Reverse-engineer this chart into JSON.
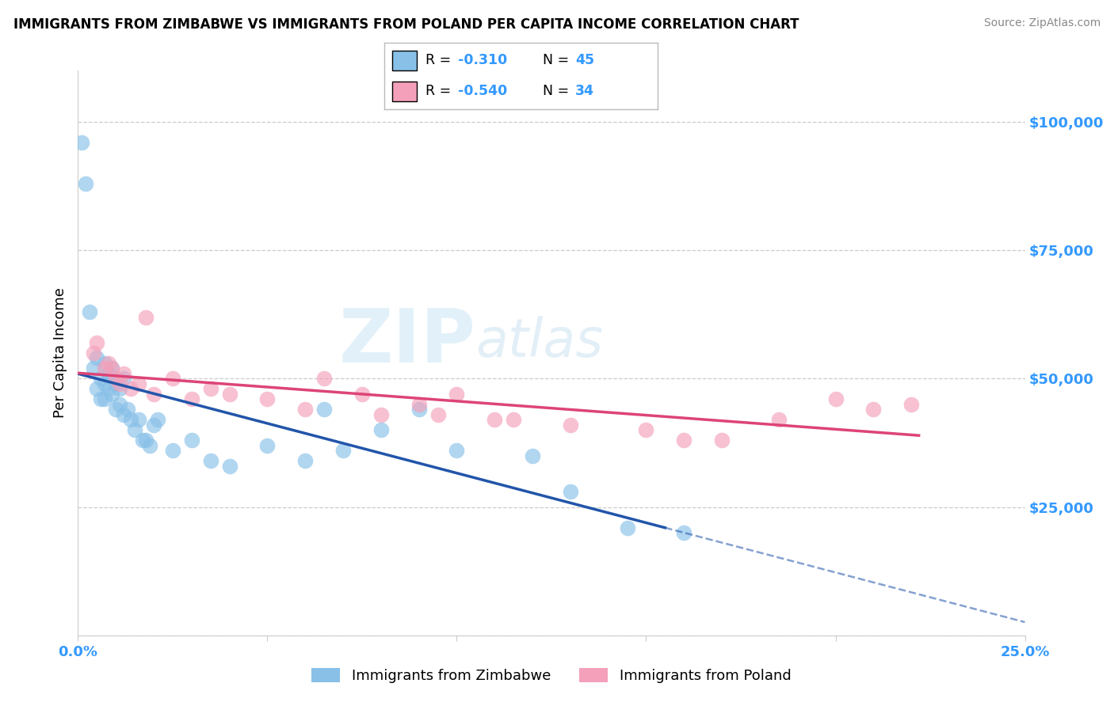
{
  "title": "IMMIGRANTS FROM ZIMBABWE VS IMMIGRANTS FROM POLAND PER CAPITA INCOME CORRELATION CHART",
  "source": "Source: ZipAtlas.com",
  "ylabel": "Per Capita Income",
  "xlim": [
    0.0,
    0.25
  ],
  "ylim": [
    0,
    110000
  ],
  "yticks": [
    0,
    25000,
    50000,
    75000,
    100000
  ],
  "ytick_labels": [
    "",
    "$25,000",
    "$50,000",
    "$75,000",
    "$100,000"
  ],
  "xticks": [
    0.0,
    0.05,
    0.1,
    0.15,
    0.2,
    0.25
  ],
  "xtick_labels": [
    "0.0%",
    "",
    "",
    "",
    "",
    "25.0%"
  ],
  "legend_r_zim": "-0.310",
  "legend_n_zim": "45",
  "legend_r_pol": "-0.540",
  "legend_n_pol": "34",
  "color_zimbabwe": "#88C0E8",
  "color_poland": "#F4A0BA",
  "color_line_zimbabwe": "#2255AA",
  "color_line_poland": "#DD4477",
  "background_color": "#FFFFFF",
  "grid_color": "#CCCCCC",
  "axis_color": "#3399FF",
  "zimbabwe_x": [
    0.001,
    0.002,
    0.003,
    0.004,
    0.005,
    0.005,
    0.006,
    0.006,
    0.007,
    0.007,
    0.007,
    0.008,
    0.008,
    0.009,
    0.009,
    0.01,
    0.01,
    0.011,
    0.011,
    0.012,
    0.012,
    0.013,
    0.014,
    0.015,
    0.016,
    0.017,
    0.018,
    0.019,
    0.02,
    0.021,
    0.025,
    0.03,
    0.035,
    0.04,
    0.05,
    0.06,
    0.065,
    0.07,
    0.08,
    0.09,
    0.1,
    0.12,
    0.13,
    0.145,
    0.16
  ],
  "zimbabwe_y": [
    96000,
    88000,
    63000,
    52000,
    54000,
    48000,
    50000,
    46000,
    53000,
    49000,
    46000,
    51000,
    48000,
    52000,
    47000,
    49000,
    44000,
    48000,
    45000,
    50000,
    43000,
    44000,
    42000,
    40000,
    42000,
    38000,
    38000,
    37000,
    41000,
    42000,
    36000,
    38000,
    34000,
    33000,
    37000,
    34000,
    44000,
    36000,
    40000,
    44000,
    36000,
    35000,
    28000,
    21000,
    20000
  ],
  "poland_x": [
    0.004,
    0.005,
    0.007,
    0.008,
    0.009,
    0.01,
    0.011,
    0.012,
    0.014,
    0.016,
    0.018,
    0.02,
    0.025,
    0.03,
    0.035,
    0.04,
    0.05,
    0.06,
    0.065,
    0.075,
    0.08,
    0.09,
    0.095,
    0.1,
    0.11,
    0.115,
    0.13,
    0.15,
    0.16,
    0.17,
    0.185,
    0.2,
    0.21,
    0.22
  ],
  "poland_y": [
    55000,
    57000,
    52000,
    53000,
    52000,
    50000,
    49000,
    51000,
    48000,
    49000,
    62000,
    47000,
    50000,
    46000,
    48000,
    47000,
    46000,
    44000,
    50000,
    47000,
    43000,
    45000,
    43000,
    47000,
    42000,
    42000,
    41000,
    40000,
    38000,
    38000,
    42000,
    46000,
    44000,
    45000
  ]
}
